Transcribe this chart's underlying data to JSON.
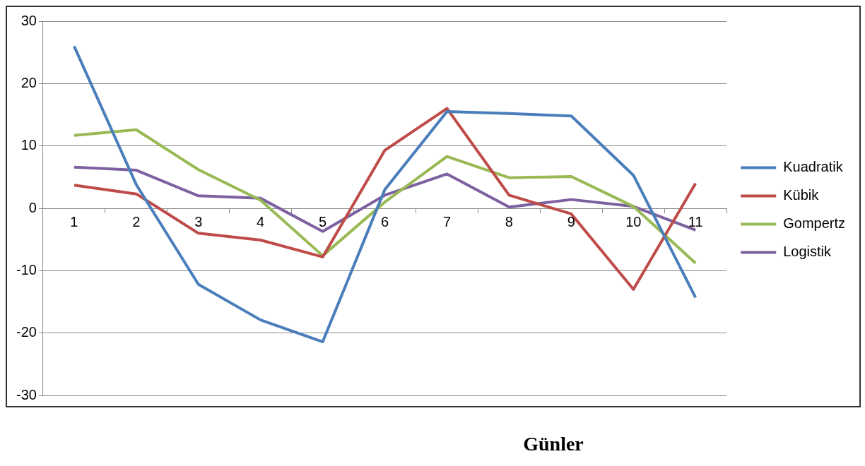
{
  "chart_data": {
    "type": "line",
    "xlabel": "Günler",
    "categories": [
      "1",
      "2",
      "3",
      "4",
      "5",
      "6",
      "7",
      "8",
      "9",
      "10",
      "11"
    ],
    "series": [
      {
        "name": "Kuadratik",
        "color": "#4a7ebb",
        "values": [
          26.0,
          3.8,
          -12.2,
          -17.9,
          -21.4,
          3.0,
          15.5,
          15.2,
          14.8,
          5.3,
          -14.3
        ]
      },
      {
        "name": "Kübik",
        "color": "#be4b48",
        "values": [
          3.7,
          2.3,
          -4.0,
          -5.1,
          -7.8,
          9.3,
          16.0,
          2.1,
          -0.9,
          -13.0,
          4.0
        ]
      },
      {
        "name": "Gompertz",
        "color": "#98b954",
        "values": [
          11.7,
          12.6,
          6.2,
          1.3,
          -7.6,
          1.0,
          8.3,
          4.9,
          5.1,
          0.3,
          -8.8
        ]
      },
      {
        "name": "Logistik",
        "color": "#7d60a0",
        "values": [
          6.6,
          6.1,
          2.0,
          1.6,
          -3.7,
          2.1,
          5.5,
          0.2,
          1.4,
          0.3,
          -3.5
        ]
      }
    ],
    "ylim": [
      -30,
      30
    ],
    "yticks": [
      -30,
      -20,
      -10,
      0,
      10,
      20,
      30
    ],
    "grid": "y",
    "legend": "right"
  }
}
